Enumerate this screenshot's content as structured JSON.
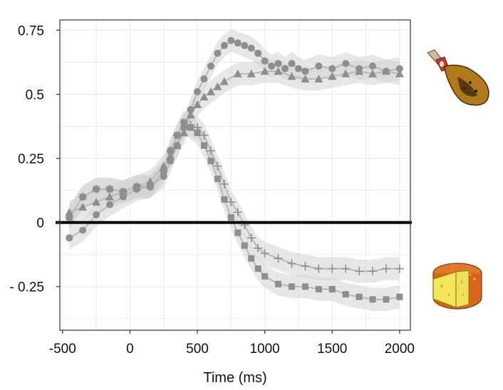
{
  "chart_data": {
    "type": "line",
    "title": "",
    "xlabel": "Time (ms)",
    "ylabel": "",
    "xlim": [
      -520,
      2080
    ],
    "ylim": [
      -0.42,
      0.79
    ],
    "xticks": [
      -500,
      0,
      500,
      1000,
      1500,
      2000
    ],
    "xtick_labels": [
      "-500",
      "0",
      "500",
      "1000",
      "1500",
      "2000"
    ],
    "yticks": [
      0.75,
      0.5,
      0.25,
      0,
      -0.25
    ],
    "ytick_labels": [
      "0.75",
      "0.5",
      "0.25",
      "0",
      "- 0.25"
    ],
    "grid": true,
    "reference_line": 0,
    "marker_series": [
      {
        "marker": "circle",
        "x": [
          -450,
          -350,
          -250,
          -150,
          -50,
          50,
          150,
          250,
          300,
          350,
          400,
          450,
          500,
          550,
          600,
          650,
          700,
          750,
          800,
          850,
          900,
          950,
          1000,
          1050,
          1100,
          1150,
          1200,
          1250,
          1300,
          1400,
          1500,
          1600,
          1700,
          1800,
          1900,
          2000
        ],
        "y": [
          -0.06,
          -0.03,
          0.03,
          0.07,
          0.1,
          0.13,
          0.14,
          0.18,
          0.24,
          0.3,
          0.37,
          0.44,
          0.51,
          0.56,
          0.61,
          0.66,
          0.69,
          0.71,
          0.7,
          0.69,
          0.68,
          0.66,
          0.63,
          0.61,
          0.62,
          0.6,
          0.62,
          0.6,
          0.59,
          0.61,
          0.6,
          0.62,
          0.6,
          0.61,
          0.59,
          0.6
        ]
      },
      {
        "marker": "triangle",
        "x": [
          -450,
          -350,
          -250,
          -150,
          -50,
          50,
          150,
          250,
          300,
          350,
          400,
          450,
          500,
          550,
          600,
          650,
          700,
          800,
          900,
          1000,
          1100,
          1200,
          1300,
          1400,
          1500,
          1600,
          1700,
          1800,
          1900,
          2000
        ],
        "y": [
          0.04,
          0.06,
          0.08,
          0.1,
          0.12,
          0.14,
          0.16,
          0.22,
          0.26,
          0.3,
          0.35,
          0.42,
          0.46,
          0.49,
          0.51,
          0.53,
          0.55,
          0.58,
          0.58,
          0.59,
          0.59,
          0.57,
          0.56,
          0.56,
          0.57,
          0.58,
          0.59,
          0.58,
          0.59,
          0.58
        ]
      },
      {
        "marker": "plus",
        "x": [
          -450,
          -350,
          -250,
          -150,
          -50,
          50,
          150,
          250,
          300,
          350,
          400,
          450,
          500,
          550,
          600,
          650,
          700,
          750,
          800,
          850,
          900,
          950,
          1000,
          1100,
          1200,
          1300,
          1400,
          1500,
          1600,
          1700,
          1800,
          1900,
          2000
        ],
        "y": [
          0.02,
          0.1,
          0.13,
          0.13,
          0.12,
          0.14,
          0.14,
          0.2,
          0.28,
          0.34,
          0.39,
          0.38,
          0.37,
          0.34,
          0.28,
          0.22,
          0.15,
          0.08,
          0.04,
          -0.01,
          -0.06,
          -0.1,
          -0.12,
          -0.14,
          -0.16,
          -0.17,
          -0.18,
          -0.18,
          -0.18,
          -0.19,
          -0.19,
          -0.18,
          -0.18
        ]
      },
      {
        "marker": "square",
        "x": [
          -450,
          -350,
          -250,
          -150,
          -50,
          50,
          150,
          250,
          300,
          350,
          400,
          450,
          500,
          550,
          600,
          650,
          700,
          750,
          800,
          850,
          900,
          950,
          1000,
          1100,
          1200,
          1300,
          1400,
          1500,
          1600,
          1700,
          1800,
          1900,
          2000
        ],
        "y": [
          0.02,
          0.1,
          0.13,
          0.13,
          0.12,
          0.14,
          0.14,
          0.2,
          0.28,
          0.34,
          0.39,
          0.37,
          0.35,
          0.3,
          0.24,
          0.17,
          0.09,
          0.02,
          -0.04,
          -0.09,
          -0.14,
          -0.18,
          -0.21,
          -0.24,
          -0.25,
          -0.25,
          -0.26,
          -0.26,
          -0.28,
          -0.29,
          -0.3,
          -0.3,
          -0.29
        ]
      }
    ],
    "colors": {
      "markers": "#8e8e8e",
      "band": "#d4d4d4",
      "mean_line": "#b8b8b8",
      "grid": "#ebebeb",
      "panel_border": "#333333",
      "reference_line": "#000000"
    },
    "icons": [
      "ham-icon",
      "cheese-icon"
    ]
  }
}
